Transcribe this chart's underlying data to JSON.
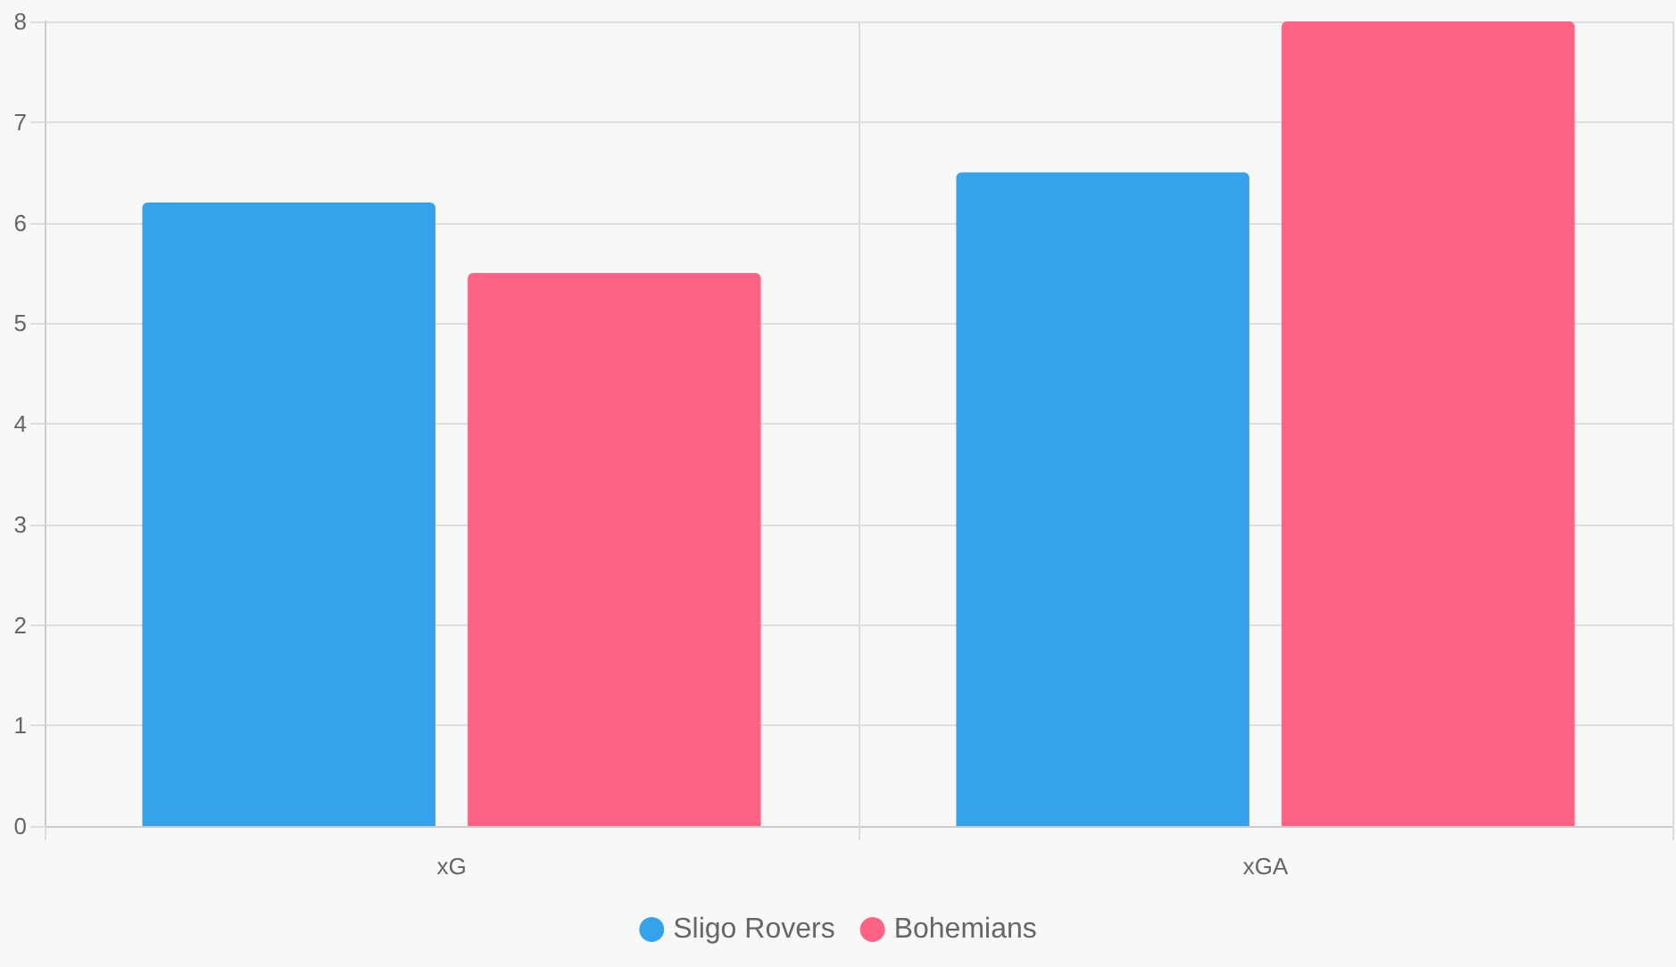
{
  "chart_data": {
    "type": "bar",
    "categories": [
      "xG",
      "xGA"
    ],
    "series": [
      {
        "name": "Sligo Rovers",
        "color": "#36a2eb",
        "values": [
          6.2,
          6.5
        ]
      },
      {
        "name": "Bohemians",
        "color": "#ff6384",
        "values": [
          5.5,
          8
        ]
      }
    ],
    "ylim": [
      0,
      8
    ],
    "yticks": [
      0,
      1,
      2,
      3,
      4,
      5,
      6,
      7,
      8
    ],
    "grid": true,
    "legend": "bottom"
  }
}
